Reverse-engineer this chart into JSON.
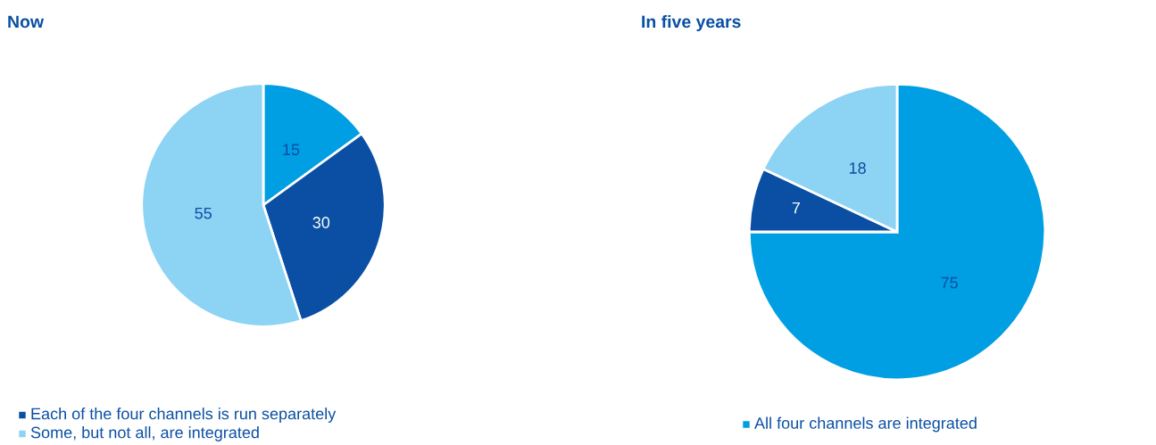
{
  "chart_data": [
    {
      "type": "pie",
      "title": "Now",
      "categories": [
        null,
        "Each of the four channels is run separately",
        "Some, but not all, are integrated"
      ],
      "values": [
        15,
        30,
        55
      ],
      "colors": [
        "#009fe3",
        "#0a4fa3",
        "#8dd3f3"
      ],
      "data_labels": true,
      "legend": "bottom"
    },
    {
      "type": "pie",
      "title": "In five years",
      "categories": [
        "All four channels are integrated",
        null,
        null
      ],
      "values": [
        75,
        7,
        18
      ],
      "colors": [
        "#009fe3",
        "#0a4fa3",
        "#8dd3f3"
      ],
      "data_labels": true,
      "legend": "bottom"
    }
  ]
}
